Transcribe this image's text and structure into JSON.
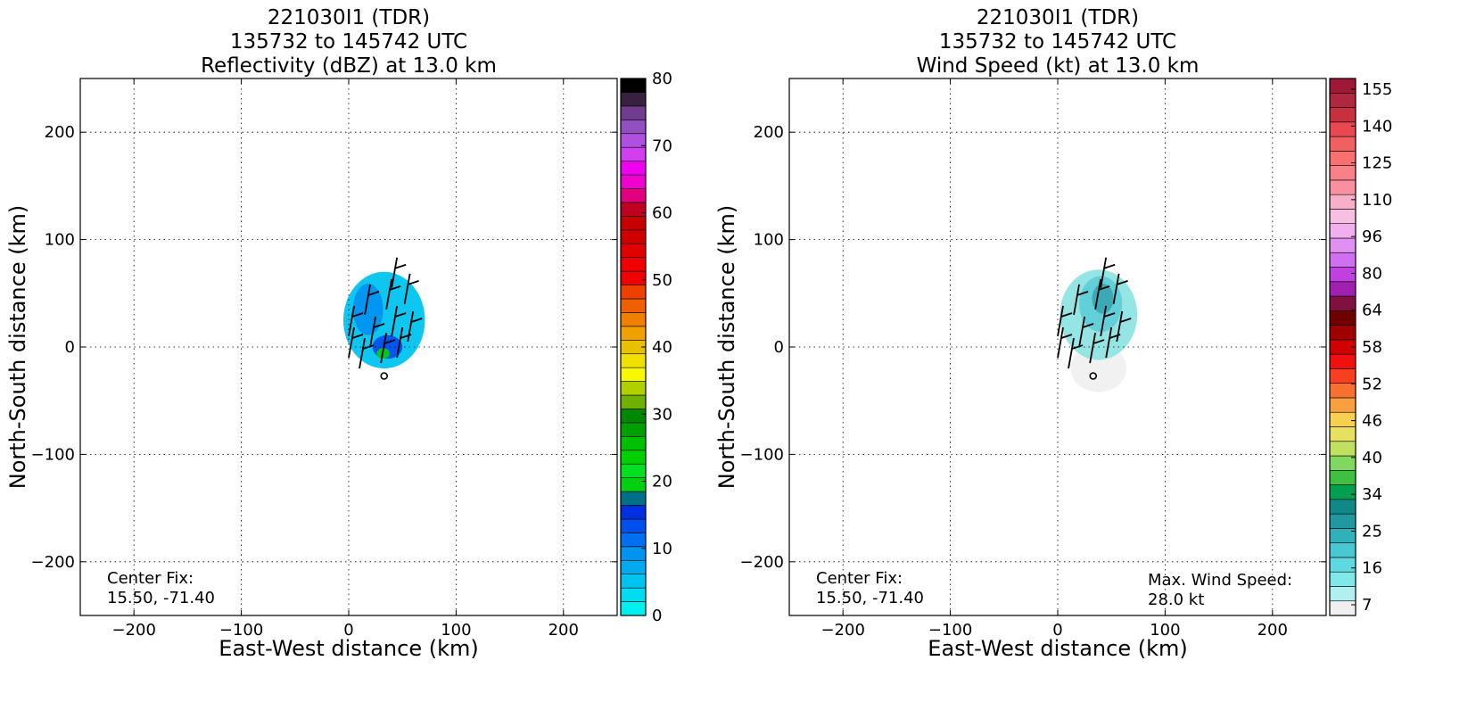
{
  "chart_data": [
    {
      "type": "heatmap",
      "title_lines": [
        "221030I1 (TDR)",
        "135732 to 145742 UTC",
        "Reflectivity (dBZ) at 13.0 km"
      ],
      "xlabel": "East-West distance (km)",
      "ylabel": "North-South distance (km)",
      "xlim": [
        -250,
        250
      ],
      "ylim": [
        -250,
        250
      ],
      "xticks": [
        -200,
        -100,
        0,
        100,
        200
      ],
      "yticks": [
        -200,
        -100,
        0,
        100,
        200
      ],
      "xtick_labels": [
        "−200",
        "−100",
        "0",
        "100",
        "200"
      ],
      "ytick_labels": [
        "−200",
        "−100",
        "0",
        "100",
        "200"
      ],
      "grid": true,
      "annotation_lines": [
        "Center Fix:",
        "15.50, -71.40"
      ],
      "center_marker": [
        33,
        -27
      ],
      "colorbar": {
        "label_values": [
          "0",
          "10",
          "20",
          "30",
          "40",
          "50",
          "60",
          "70",
          "80"
        ],
        "colors": [
          "#00f0f0",
          "#00dcf0",
          "#00c4f0",
          "#00acf0",
          "#0094f0",
          "#0070f0",
          "#0050f0",
          "#0030e0",
          "#007088",
          "#00d010",
          "#00e020",
          "#00d000",
          "#00c000",
          "#00a000",
          "#008800",
          "#70b000",
          "#b0d000",
          "#f8f800",
          "#f0e000",
          "#e8c000",
          "#f0a000",
          "#f08000",
          "#f06000",
          "#f04000",
          "#f00000",
          "#f00000",
          "#e00000",
          "#d00000",
          "#c80000",
          "#c00020",
          "#e00080",
          "#f000d0",
          "#f000f0",
          "#d040f0",
          "#b050e0",
          "#9050c0",
          "#703c90",
          "#382040",
          "#000000"
        ]
      },
      "field_levels": [
        "#00dcf0",
        "#00c4f0",
        "#0094f0",
        "#0050f0",
        "#00d010"
      ],
      "field_blobs": [
        {
          "x": 33,
          "y": 25,
          "rx": 38,
          "ry": 45,
          "level": 1
        },
        {
          "x": 18,
          "y": 35,
          "rx": 14,
          "ry": 24,
          "level": 2
        },
        {
          "x": 36,
          "y": 0,
          "rx": 14,
          "ry": 11,
          "level": 3
        },
        {
          "x": 32,
          "y": -6,
          "rx": 6,
          "ry": 5,
          "level": 4
        }
      ],
      "wind_barbs": [
        {
          "x": 0,
          "y": 10
        },
        {
          "x": 15,
          "y": 30
        },
        {
          "x": 35,
          "y": 35
        },
        {
          "x": 52,
          "y": 40
        },
        {
          "x": 0,
          "y": -10
        },
        {
          "x": 20,
          "y": 0
        },
        {
          "x": 40,
          "y": 10
        },
        {
          "x": 55,
          "y": 5
        },
        {
          "x": 10,
          "y": -20
        },
        {
          "x": 30,
          "y": -15
        },
        {
          "x": 45,
          "y": -10
        },
        {
          "x": 40,
          "y": 55
        }
      ]
    },
    {
      "type": "heatmap",
      "title_lines": [
        "221030I1 (TDR)",
        "135732 to 145742 UTC",
        "Wind Speed (kt) at 13.0 km"
      ],
      "xlabel": "East-West distance (km)",
      "ylabel": "North-South distance (km)",
      "xlim": [
        -250,
        250
      ],
      "ylim": [
        -250,
        250
      ],
      "xticks": [
        -200,
        -100,
        0,
        100,
        200
      ],
      "yticks": [
        -200,
        -100,
        0,
        100,
        200
      ],
      "xtick_labels": [
        "−200",
        "−100",
        "0",
        "100",
        "200"
      ],
      "ytick_labels": [
        "−200",
        "−100",
        "0",
        "100",
        "200"
      ],
      "grid": true,
      "annotation_lines": [
        "Center Fix:",
        "15.50, -71.40"
      ],
      "annotation_right_lines": [
        "Max. Wind Speed:",
        "28.0 kt"
      ],
      "max_wind_speed_kt": 28.0,
      "center_marker": [
        33,
        -27
      ],
      "colorbar": {
        "label_values": [
          "7",
          "16",
          "25",
          "34",
          "40",
          "46",
          "52",
          "58",
          "64",
          "80",
          "96",
          "110",
          "125",
          "140",
          "155"
        ],
        "colors": [
          "#f0f0f0",
          "#b0f0f0",
          "#80e8e8",
          "#60d8e0",
          "#48c8d0",
          "#30b0b8",
          "#2098a0",
          "#108888",
          "#00a050",
          "#40c040",
          "#80d860",
          "#c0e060",
          "#e8e060",
          "#f8d050",
          "#f8a040",
          "#f87030",
          "#f84020",
          "#f01010",
          "#d00000",
          "#a00000",
          "#700000",
          "#801040",
          "#a020b0",
          "#c040e0",
          "#d070f0",
          "#e090f0",
          "#f0b0f0",
          "#f8c0e0",
          "#f8b0c8",
          "#f890a0",
          "#f88088",
          "#f87070",
          "#f06060",
          "#e84850",
          "#c83040",
          "#b02840",
          "#a01838"
        ]
      },
      "field_levels": [
        "#f0f0f0",
        "#90e4e4",
        "#60cdd8",
        "#3aa8b4"
      ],
      "field_blobs": [
        {
          "x": 38,
          "y": -20,
          "rx": 26,
          "ry": 22,
          "level": 0
        },
        {
          "x": 38,
          "y": 30,
          "rx": 36,
          "ry": 42,
          "level": 1
        },
        {
          "x": 40,
          "y": 40,
          "rx": 20,
          "ry": 26,
          "level": 2
        },
        {
          "x": 42,
          "y": 45,
          "rx": 10,
          "ry": 14,
          "level": 3
        }
      ],
      "wind_barbs": [
        {
          "x": 0,
          "y": 10
        },
        {
          "x": 15,
          "y": 30
        },
        {
          "x": 35,
          "y": 35
        },
        {
          "x": 52,
          "y": 40
        },
        {
          "x": 0,
          "y": -10
        },
        {
          "x": 20,
          "y": 0
        },
        {
          "x": 40,
          "y": 10
        },
        {
          "x": 55,
          "y": 5
        },
        {
          "x": 10,
          "y": -20
        },
        {
          "x": 30,
          "y": -15
        },
        {
          "x": 45,
          "y": -10
        },
        {
          "x": 40,
          "y": 55
        }
      ]
    }
  ]
}
